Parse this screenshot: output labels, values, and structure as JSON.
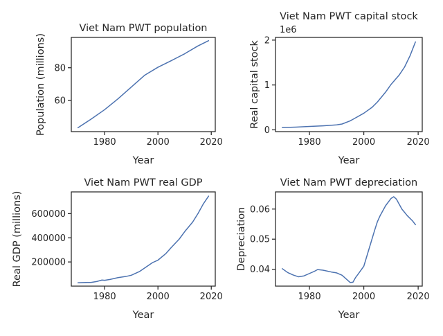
{
  "chart_data": [
    {
      "type": "line",
      "title": "Viet Nam PWT population",
      "xlabel": "Year",
      "ylabel": "Population (millions)",
      "xlim": [
        1967.5,
        2021.5
      ],
      "ylim": [
        41.0,
        98.5
      ],
      "xticks": [
        1980,
        2000,
        2020
      ],
      "yticks": [
        60,
        80
      ],
      "ytick_labels": [
        "60",
        "80"
      ],
      "offset_label": "",
      "color": "#4c72b0",
      "x": [
        1970,
        1975,
        1980,
        1985,
        1990,
        1995,
        2000,
        2005,
        2010,
        2015,
        2019
      ],
      "y": [
        43.4,
        48.7,
        54.4,
        61.0,
        68.2,
        75.4,
        80.3,
        84.3,
        88.5,
        93.3,
        96.5
      ]
    },
    {
      "type": "line",
      "title": "Viet Nam PWT capital stock",
      "xlabel": "Year",
      "ylabel": "Real capital stock",
      "xlim": [
        1967.5,
        2021.5
      ],
      "ylim": [
        -40000,
        2060000
      ],
      "xticks": [
        1980,
        2000,
        2020
      ],
      "yticks": [
        0,
        1000000,
        2000000
      ],
      "ytick_labels": [
        "0",
        "1",
        "2"
      ],
      "offset_label": "1e6",
      "color": "#4c72b0",
      "x": [
        1970,
        1975,
        1980,
        1985,
        1990,
        1992,
        1995,
        2000,
        2003,
        2005,
        2008,
        2010,
        2013,
        2015,
        2017,
        2019
      ],
      "y": [
        50000,
        60000,
        75000,
        90000,
        110000,
        130000,
        200000,
        370000,
        500000,
        620000,
        840000,
        1010000,
        1220000,
        1400000,
        1650000,
        1960000
      ]
    },
    {
      "type": "line",
      "title": "Viet Nam PWT real GDP",
      "xlabel": "Year",
      "ylabel": "Real GDP (millions)",
      "xlim": [
        1967.5,
        2021.5
      ],
      "ylim": [
        0,
        780000
      ],
      "xticks": [
        1980,
        2000,
        2020
      ],
      "yticks": [
        200000,
        400000,
        600000
      ],
      "ytick_labels": [
        "200000",
        "400000",
        "600000"
      ],
      "offset_label": "",
      "color": "#4c72b0",
      "x": [
        1970,
        1973,
        1975,
        1977,
        1979,
        1980,
        1982,
        1985,
        1988,
        1990,
        1993,
        1995,
        1998,
        2000,
        2003,
        2005,
        2008,
        2010,
        2013,
        2015,
        2017,
        2019
      ],
      "y": [
        28000,
        30000,
        31000,
        38000,
        50000,
        48000,
        55000,
        70000,
        80000,
        90000,
        120000,
        150000,
        195000,
        215000,
        270000,
        320000,
        390000,
        450000,
        530000,
        600000,
        680000,
        745000
      ]
    },
    {
      "type": "line",
      "title": "Viet Nam PWT depreciation",
      "xlabel": "Year",
      "ylabel": "Depreciation",
      "xlim": [
        1967.5,
        2021.5
      ],
      "ylim": [
        0.0344,
        0.0657
      ],
      "xticks": [
        1980,
        2000,
        2020
      ],
      "yticks": [
        0.04,
        0.05,
        0.06
      ],
      "ytick_labels": [
        "0.04",
        "0.05",
        "0.06"
      ],
      "offset_label": "",
      "color": "#4c72b0",
      "x": [
        1970,
        1972,
        1974,
        1976,
        1978,
        1980,
        1982,
        1983,
        1985,
        1988,
        1990,
        1992,
        1994,
        1995,
        1996,
        1997,
        1998,
        2000,
        2002,
        2004,
        2005,
        2006,
        2008,
        2010,
        2011,
        2012,
        2014,
        2016,
        2018,
        2019
      ],
      "y": [
        0.0402,
        0.0389,
        0.0381,
        0.0375,
        0.0378,
        0.0386,
        0.0394,
        0.0399,
        0.0397,
        0.0391,
        0.0388,
        0.038,
        0.0364,
        0.0356,
        0.0357,
        0.0373,
        0.0385,
        0.041,
        0.047,
        0.053,
        0.0558,
        0.0578,
        0.0611,
        0.0635,
        0.0641,
        0.0633,
        0.06,
        0.0578,
        0.056,
        0.0548
      ]
    }
  ]
}
